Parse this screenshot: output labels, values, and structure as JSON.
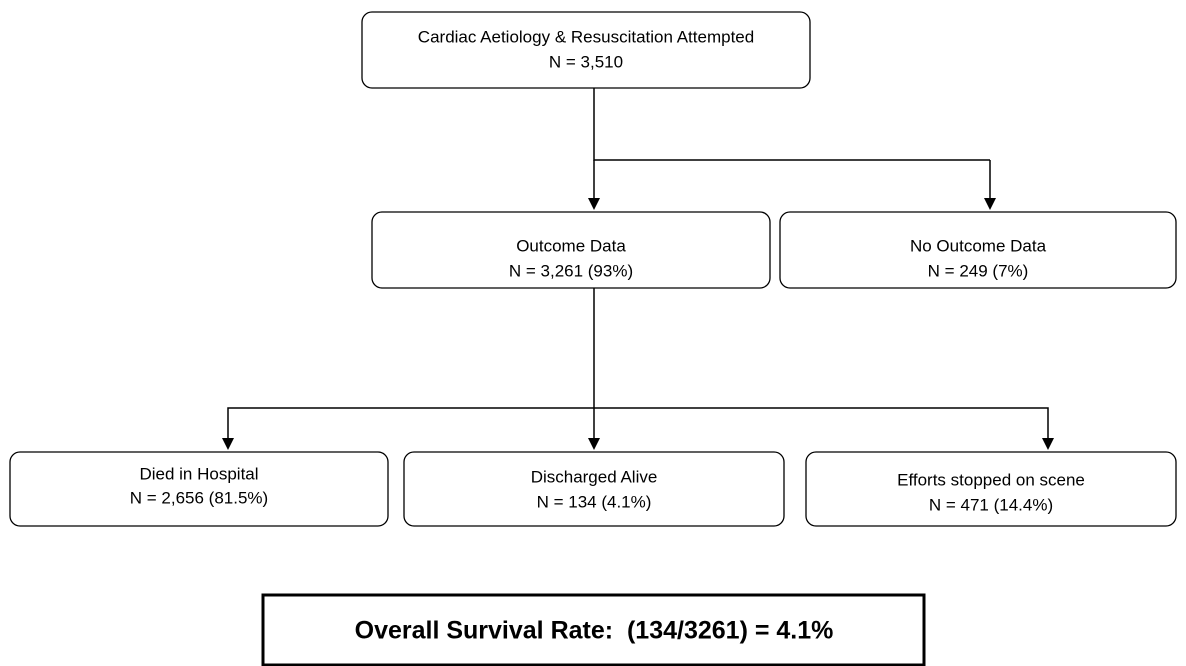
{
  "nodes": [
    {
      "title": "Cardiac Aetiology & Resuscitation Attempted",
      "detail": "N = 3,510"
    },
    {
      "title": "Outcome Data",
      "detail": "N = 3,261 (93%)"
    },
    {
      "title": "No Outcome Data",
      "detail": "N = 249 (7%)"
    },
    {
      "title": "Died in Hospital",
      "detail": "N = 2,656 (81.5%)"
    },
    {
      "title": "Discharged Alive",
      "detail": "N = 134 (4.1%)"
    },
    {
      "title": "Efforts stopped on scene",
      "detail": "N = 471 (14.4%)"
    }
  ],
  "summary": "Overall Survival Rate:  (134/3261) = 4.1%"
}
